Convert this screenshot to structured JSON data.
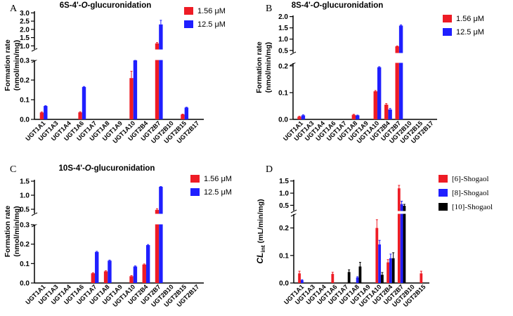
{
  "figure": {
    "colors": {
      "red": "#ee1c25",
      "blue": "#1f1fff",
      "black": "#000000"
    }
  },
  "chart_data": [
    {
      "type": "bar",
      "panel_letter": "A",
      "title": "6S-4'-O-glucuronidation",
      "title_parts": [
        "6S-4'-",
        "O",
        "-glucuronidation"
      ],
      "ylabel_lines": [
        "Formation rate",
        "(nmol/min/mg)"
      ],
      "categories": [
        "UGT1A1",
        "UGT1A3",
        "UGT1A4",
        "UGT1A6",
        "UGT1A7",
        "UGT1A8",
        "UGT1A9",
        "UGT1A10",
        "UGT2B4",
        "UGT2B7",
        "UGT2B10",
        "UGT2B15",
        "UGT2B17"
      ],
      "upper_ticks": [
        "1.0",
        "1.5",
        "2.0",
        "2.5",
        "3.0"
      ],
      "lower_ticks": [
        "0.0",
        "0.1",
        "0.2",
        "0.3"
      ],
      "upper_range": [
        0.8,
        3.1
      ],
      "lower_range": [
        0,
        0.3
      ],
      "series": [
        {
          "name": "1.56 μM",
          "color": "#ee1c25",
          "values": [
            0.035,
            0,
            0,
            0.036,
            0,
            0,
            0,
            0.21,
            0,
            1.15,
            0,
            0.025,
            0
          ],
          "errors": [
            0.003,
            0,
            0,
            0.003,
            0,
            0,
            0,
            0.035,
            0,
            0.05,
            0,
            0.002,
            0
          ]
        },
        {
          "name": "12.5 μM",
          "color": "#1f1fff",
          "values": [
            0.068,
            0,
            0,
            0.165,
            0,
            0,
            0,
            0.59,
            0,
            2.3,
            0,
            0.06,
            0
          ],
          "errors": [
            0.002,
            0,
            0,
            0.002,
            0,
            0,
            0,
            0.02,
            0,
            0.25,
            0,
            0.002,
            0
          ]
        }
      ]
    },
    {
      "type": "bar",
      "panel_letter": "B",
      "title": "8S-4'-O-glucuronidation",
      "title_parts": [
        "8S-4'-",
        "O",
        "-glucuronidation"
      ],
      "ylabel_lines": [
        "Formation rate",
        "(nmol/min/mg)"
      ],
      "categories": [
        "UGT1A1",
        "UGT1A3",
        "UGT1A4",
        "UGT1A6",
        "UGT1A7",
        "UGT1A8",
        "UGT1A9",
        "UGT1A10",
        "UGT2B4",
        "UGT2B7",
        "UGT2B10",
        "UGT2B15",
        "UGT2B17"
      ],
      "upper_ticks": [
        "0.5",
        "1.0",
        "1.5",
        "2.0"
      ],
      "lower_ticks": [
        "0.0",
        "0.1",
        "0.2"
      ],
      "upper_range": [
        0.4,
        2.05
      ],
      "lower_range": [
        0,
        0.21
      ],
      "series": [
        {
          "name": "1.56 μM",
          "color": "#ee1c25",
          "values": [
            0.01,
            0,
            0,
            0,
            0,
            0.017,
            0,
            0.105,
            0.055,
            0.68,
            0,
            0,
            0
          ],
          "errors": [
            0.002,
            0,
            0,
            0,
            0,
            0.002,
            0,
            0.003,
            0.004,
            0.02,
            0,
            0,
            0
          ]
        },
        {
          "name": "12.5 μM",
          "color": "#1f1fff",
          "values": [
            0.015,
            0,
            0,
            0,
            0,
            0.015,
            0,
            0.195,
            0.037,
            1.6,
            0,
            0,
            0
          ],
          "errors": [
            0.002,
            0,
            0,
            0,
            0,
            0.001,
            0,
            0.002,
            0.004,
            0.03,
            0,
            0,
            0
          ]
        }
      ]
    },
    {
      "type": "bar",
      "panel_letter": "C",
      "title": "10S-4'-O-glucuronidation",
      "title_parts": [
        "10S-4'-",
        "O",
        "-glucuronidation"
      ],
      "ylabel_lines": [
        "Formation rate",
        "(nmol/min/mg)"
      ],
      "categories": [
        "UGT1A1",
        "UGT1A3",
        "UGT1A4",
        "UGT1A6",
        "UGT1A7",
        "UGT1A8",
        "UGT1A9",
        "UGT1A10",
        "UGT2B4",
        "UGT2B7",
        "UGT2B10",
        "UGT2B15",
        "UGT2B17"
      ],
      "upper_ticks": [
        "0.5",
        "1.0",
        "1.5"
      ],
      "lower_ticks": [
        "0.0",
        "0.1",
        "0.2",
        "0.3"
      ],
      "upper_range": [
        0.35,
        1.55
      ],
      "lower_range": [
        0,
        0.3
      ],
      "series": [
        {
          "name": "1.56 μM",
          "color": "#ee1c25",
          "values": [
            0,
            0,
            0,
            0,
            0.05,
            0.06,
            0,
            0.035,
            0.095,
            0.48,
            0,
            0,
            0
          ],
          "errors": [
            0,
            0,
            0,
            0,
            0.003,
            0.003,
            0,
            0.003,
            0.003,
            0.04,
            0,
            0,
            0
          ]
        },
        {
          "name": "12.5 μM",
          "color": "#1f1fff",
          "values": [
            0,
            0,
            0,
            0,
            0.16,
            0.115,
            0,
            0.085,
            0.195,
            1.3,
            0,
            0,
            0
          ],
          "errors": [
            0,
            0,
            0,
            0,
            0.003,
            0.003,
            0,
            0.003,
            0.003,
            0.01,
            0,
            0,
            0
          ]
        }
      ]
    },
    {
      "type": "bar",
      "panel_letter": "D",
      "title": "",
      "ylabel_lines": [
        "CL",
        "int",
        " (mL/min/mg)"
      ],
      "categories": [
        "UGT1A1",
        "UGT1A3",
        "UGT1A4",
        "UGT1A6",
        "UGT1A7",
        "UGT1A8",
        "UGT1A9",
        "UGT1A10",
        "UGT2B4",
        "UGT2B7",
        "UGT2B10",
        "UGT2B15"
      ],
      "upper_ticks": [
        "0.5",
        "1.0",
        "1.5"
      ],
      "lower_ticks": [
        "0.0",
        "0.1",
        "0.2"
      ],
      "upper_range": [
        0.28,
        1.55
      ],
      "lower_range": [
        0,
        0.25
      ],
      "series": [
        {
          "name": "[6]-Shogaol",
          "color": "#ee1c25",
          "values": [
            0.035,
            0,
            0,
            0.033,
            0,
            0,
            0,
            0.2,
            0.075,
            1.2,
            0,
            0.035
          ],
          "errors": [
            0.008,
            0,
            0,
            0.006,
            0,
            0,
            0,
            0.03,
            0.01,
            0.12,
            0,
            0.008
          ]
        },
        {
          "name": "[8]-Shogaol",
          "color": "#1f1fff",
          "values": [
            0.01,
            0,
            0,
            0,
            0,
            0.02,
            0,
            0.14,
            0.09,
            0.55,
            0,
            0
          ],
          "errors": [
            0.002,
            0,
            0,
            0,
            0,
            0.003,
            0,
            0.015,
            0.015,
            0.12,
            0,
            0
          ]
        },
        {
          "name": "[10]-Shogaol",
          "color": "#000000",
          "values": [
            0,
            0,
            0,
            0,
            0.04,
            0.06,
            0,
            0.03,
            0.09,
            0.48,
            0,
            0
          ],
          "errors": [
            0,
            0,
            0,
            0,
            0.008,
            0.015,
            0,
            0.008,
            0.02,
            0.06,
            0,
            0
          ]
        }
      ]
    }
  ]
}
